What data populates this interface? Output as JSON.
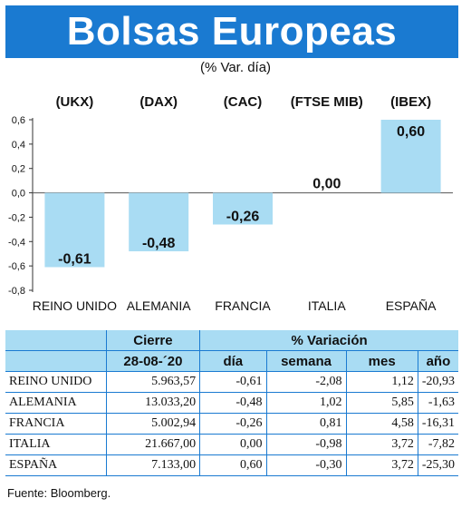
{
  "title": "Bolsas Europeas",
  "subtitle": "(% Var. día)",
  "chart_data": {
    "type": "bar",
    "tickers": [
      "(UKX)",
      "(DAX)",
      "(CAC)",
      "(FTSE MIB)",
      "(IBEX)"
    ],
    "categories": [
      "REINO UNIDO",
      "ALEMANIA",
      "FRANCIA",
      "ITALIA",
      "ESPAÑA"
    ],
    "values": [
      -0.61,
      -0.48,
      -0.26,
      0.0,
      0.6
    ],
    "value_labels": [
      "-0,61",
      "-0,48",
      "-0,26",
      "0,00",
      "0,60"
    ],
    "yticks": [
      "0,6",
      "0,4",
      "0,2",
      "0,0",
      "-0,2",
      "-0,4",
      "-0,6",
      "-0,8"
    ],
    "ylim": [
      -0.8,
      0.6
    ],
    "bar_color": "#a9dcf3"
  },
  "table": {
    "header1": {
      "cierre": "Cierre",
      "variacion": "% Variación"
    },
    "header2": {
      "date": "28-08-´20",
      "dia": "día",
      "semana": "semana",
      "mes": "mes",
      "ano": "año"
    },
    "rows": [
      {
        "name": "REINO UNIDO",
        "cierre": "5.963,57",
        "dia": "-0,61",
        "semana": "-2,08",
        "mes": "1,12",
        "ano": "-20,93"
      },
      {
        "name": "ALEMANIA",
        "cierre": "13.033,20",
        "dia": "-0,48",
        "semana": "1,02",
        "mes": "5,85",
        "ano": "-1,63"
      },
      {
        "name": "FRANCIA",
        "cierre": "5.002,94",
        "dia": "-0,26",
        "semana": "0,81",
        "mes": "4,58",
        "ano": "-16,31"
      },
      {
        "name": "ITALIA",
        "cierre": "21.667,00",
        "dia": "0,00",
        "semana": "-0,98",
        "mes": "3,72",
        "ano": "-7,82"
      },
      {
        "name": "ESPAÑA",
        "cierre": "7.133,00",
        "dia": "0,60",
        "semana": "-0,30",
        "mes": "3,72",
        "ano": "-25,30"
      }
    ]
  },
  "source": "Fuente: Bloomberg.",
  "colors": {
    "title_bg": "#1a7ad1",
    "header_bg": "#a9dcf3",
    "line": "#1a7ad1"
  }
}
